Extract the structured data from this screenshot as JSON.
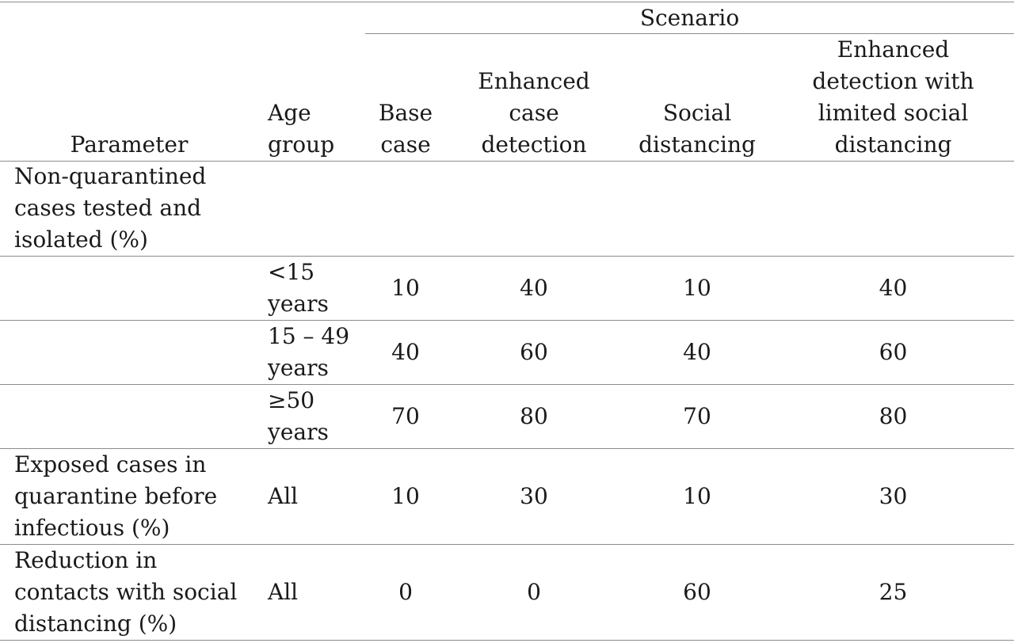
{
  "table": {
    "header": {
      "group": "Scenario",
      "parameter": "Parameter",
      "age_group": "Age\ngroup",
      "base_case": "Base\ncase",
      "enhanced_detection": "Enhanced\ncase\ndetection",
      "social_distancing": "Social\ndistancing",
      "enhanced_limited": "Enhanced\ndetection with\nlimited social\ndistancing"
    },
    "rows": [
      {
        "parameter": "Non-quarantined\ncases tested and\nisolated (%)",
        "age": "",
        "base": "",
        "enhanced": "",
        "social": "",
        "limited": ""
      },
      {
        "parameter": "",
        "age": "<15\nyears",
        "base": "10",
        "enhanced": "40",
        "social": "10",
        "limited": "40"
      },
      {
        "parameter": "",
        "age": "15 – 49\nyears",
        "base": "40",
        "enhanced": "60",
        "social": "40",
        "limited": "60"
      },
      {
        "parameter": "",
        "age": "≥50\nyears",
        "base": "70",
        "enhanced": "80",
        "social": "70",
        "limited": "80"
      },
      {
        "parameter": "Exposed cases in\nquarantine before\ninfectious (%)",
        "age": "All",
        "base": "10",
        "enhanced": "30",
        "social": "10",
        "limited": "30"
      },
      {
        "parameter": "Reduction in\ncontacts with social\ndistancing (%)",
        "age": "All",
        "base": "0",
        "enhanced": "0",
        "social": "60",
        "limited": "25"
      }
    ]
  }
}
